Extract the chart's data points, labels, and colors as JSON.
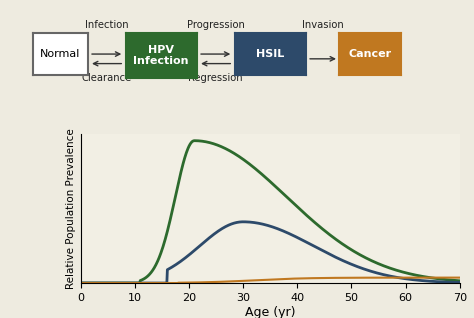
{
  "background_color": "#eeebe0",
  "chart_bg_color": "#f2efe4",
  "xlabel": "Age (yr)",
  "ylabel": "Relative Population Prevalence",
  "xlim": [
    0,
    70
  ],
  "ylim": [
    0,
    1.05
  ],
  "xticks": [
    0,
    10,
    20,
    30,
    40,
    50,
    60,
    70
  ],
  "boxes": [
    {
      "label": "Normal",
      "bg": "#ffffff",
      "fg": "#000000",
      "border": "#666666"
    },
    {
      "label": "HPV\nInfection",
      "bg": "#2d6a2d",
      "fg": "#ffffff",
      "border": "#2d6a2d"
    },
    {
      "label": "HSIL",
      "bg": "#2d4a6a",
      "fg": "#ffffff",
      "border": "#2d4a6a"
    },
    {
      "label": "Cancer",
      "bg": "#c07820",
      "fg": "#ffffff",
      "border": "#c07820"
    }
  ],
  "arrow_labels_top": [
    "Infection",
    "Progression",
    "Invasion"
  ],
  "arrow_labels_bot": [
    "Clearance",
    "Regression"
  ],
  "curve_hpv_color": "#2d6a2d",
  "curve_hsil_color": "#2d4a6a",
  "curve_cancer_color": "#c07820"
}
